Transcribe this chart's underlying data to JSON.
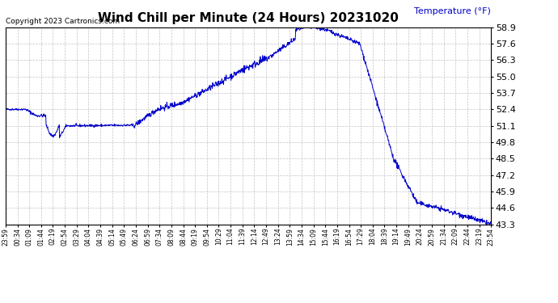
{
  "title": "Wind Chill per Minute (24 Hours) 20231020",
  "ylabel": "Temperature (°F)",
  "copyright": "Copyright 2023 Cartronics.com",
  "line_color": "#0000cc",
  "bg_color": "#ffffff",
  "plot_bg_color": "#ffffff",
  "grid_color": "#aaaaaa",
  "ylim": [
    43.3,
    58.9
  ],
  "yticks": [
    43.3,
    44.6,
    45.9,
    47.2,
    48.5,
    49.8,
    51.1,
    52.4,
    53.7,
    55.0,
    56.3,
    57.6,
    58.9
  ],
  "xtick_labels": [
    "23:59",
    "00:34",
    "01:09",
    "01:44",
    "02:19",
    "02:54",
    "03:29",
    "04:04",
    "04:39",
    "05:14",
    "05:49",
    "06:24",
    "06:59",
    "07:34",
    "08:09",
    "08:44",
    "09:19",
    "09:54",
    "10:29",
    "11:04",
    "11:39",
    "12:14",
    "12:49",
    "13:24",
    "13:59",
    "14:34",
    "15:09",
    "15:44",
    "16:19",
    "16:54",
    "17:29",
    "18:04",
    "18:39",
    "19:14",
    "19:49",
    "20:24",
    "20:59",
    "21:34",
    "22:09",
    "22:44",
    "23:19",
    "23:54"
  ],
  "title_fontsize": 11,
  "ylabel_fontsize": 8,
  "copyright_fontsize": 6.5,
  "ytick_fontsize": 8,
  "xtick_fontsize": 5.5
}
